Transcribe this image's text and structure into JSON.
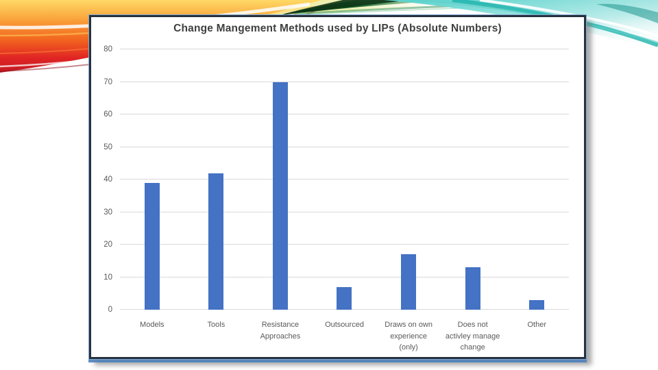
{
  "slide": {
    "type": "presentation-slide-with-chart"
  },
  "palette": {
    "bar_blue": "#4472c4",
    "gridline_gray": "#d9d9d9",
    "axis_label_gray": "#595959",
    "title_gray": "#3f3f3f",
    "frame_dark": "#27313d",
    "frame_blue_accent": "#4f81bd",
    "wave_orange": "#f7941d",
    "wave_red": "#d92027",
    "wave_yellow": "#ffd965",
    "wave_dark_green": "#0d3517",
    "wave_teal": "#1fb3ac"
  },
  "chart_data": {
    "type": "bar",
    "title": "Change Mangement Methods used by LIPs (Absolute Numbers)",
    "categories": [
      "Models",
      "Tools",
      "Resistance Approaches",
      "Outsourced",
      "Draws on own experience (only)",
      "Does not activley manage change",
      "Other"
    ],
    "category_lines": [
      [
        "Models"
      ],
      [
        "Tools"
      ],
      [
        "Resistance",
        "Approaches"
      ],
      [
        "Outsourced"
      ],
      [
        "Draws on own",
        "experience",
        "(only)"
      ],
      [
        "Does not",
        "activley manage",
        "change"
      ],
      [
        "Other"
      ]
    ],
    "values": [
      39,
      42,
      70,
      7,
      17,
      13,
      3
    ],
    "xlabel": "",
    "ylabel": "",
    "ylim": [
      0,
      80
    ],
    "yticks": [
      0,
      10,
      20,
      30,
      40,
      50,
      60,
      70,
      80
    ],
    "grid": true,
    "legend_position": "none",
    "bar_color": "#4472c4"
  }
}
